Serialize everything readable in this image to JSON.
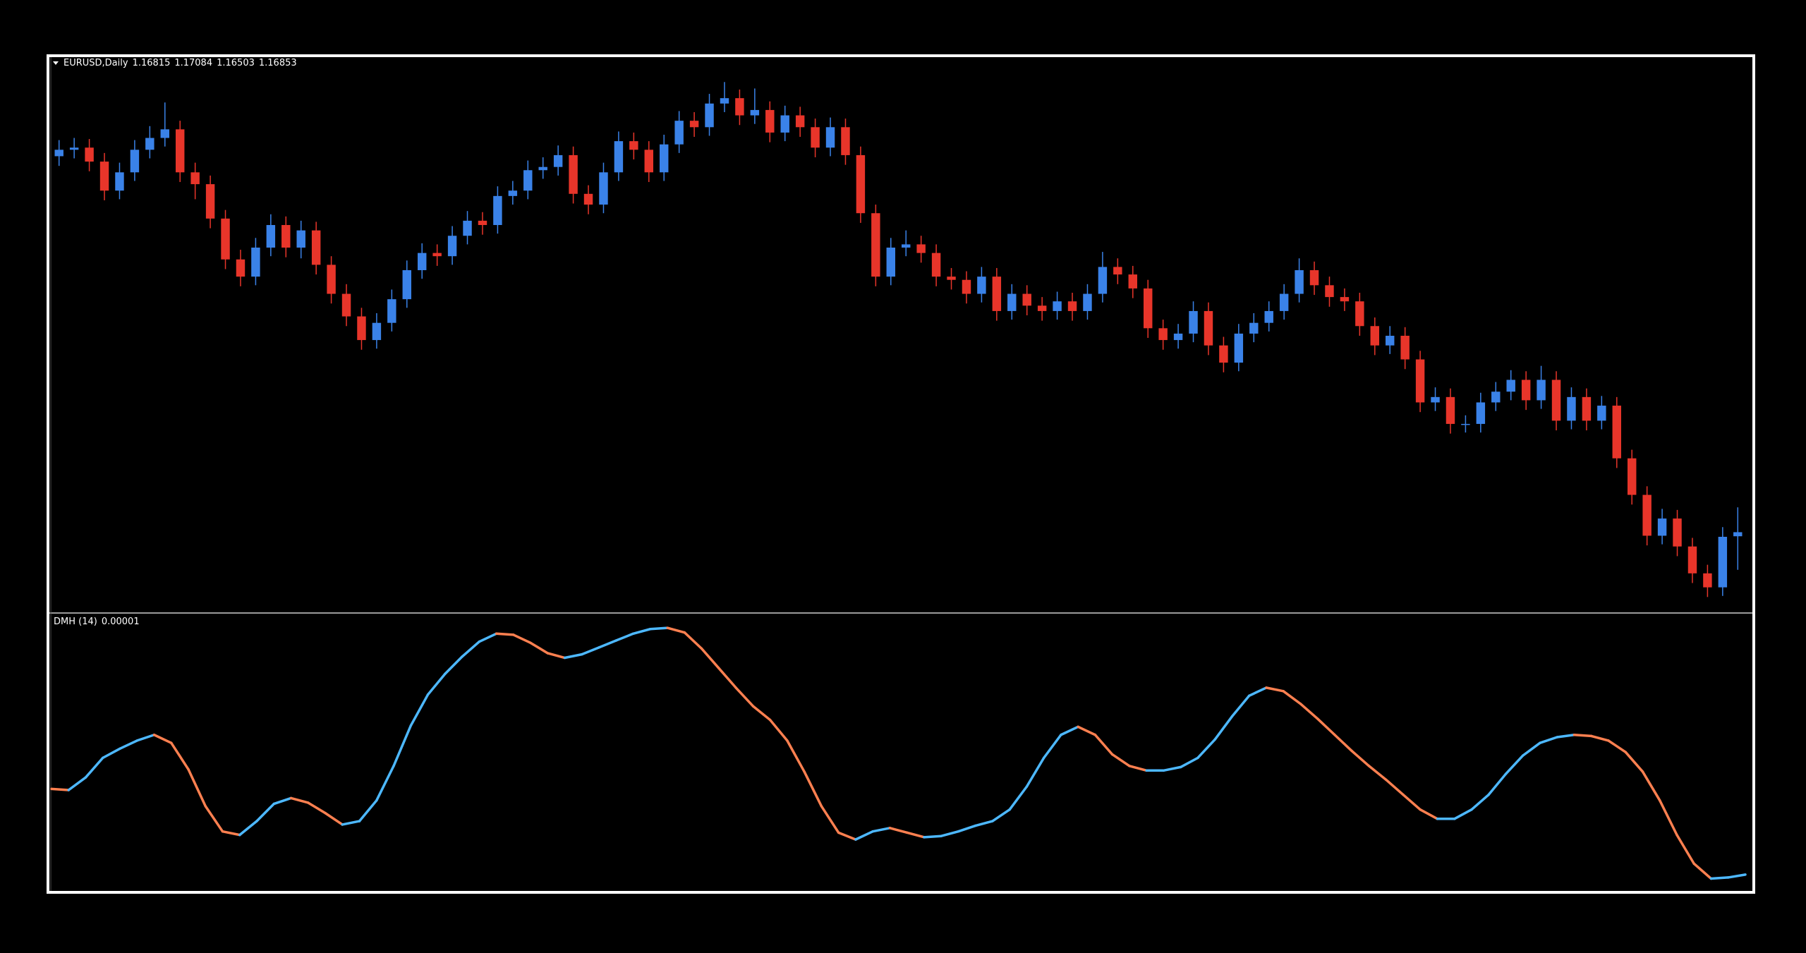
{
  "chart_data": [
    {
      "type": "candlestick",
      "title": "EURUSD,Daily",
      "up_color": "#3a82e8",
      "down_color": "#e8352a",
      "ylim": [
        1.1618,
        1.2116
      ],
      "candles": [
        [
          1.2035,
          1.205,
          1.2026,
          1.2041
        ],
        [
          1.2041,
          1.2052,
          1.2033,
          1.2043
        ],
        [
          1.2043,
          1.2051,
          1.2021,
          1.203
        ],
        [
          1.203,
          1.2038,
          1.1994,
          1.2003
        ],
        [
          1.2003,
          1.2029,
          1.1995,
          1.202
        ],
        [
          1.202,
          1.205,
          1.2012,
          1.2041
        ],
        [
          1.2041,
          1.2063,
          1.2033,
          1.2052
        ],
        [
          1.2052,
          1.2085,
          1.2044,
          1.206
        ],
        [
          1.206,
          1.2068,
          1.2011,
          1.202
        ],
        [
          1.202,
          1.2029,
          1.1995,
          1.2009
        ],
        [
          1.2009,
          1.2017,
          1.1968,
          1.1977
        ],
        [
          1.1977,
          1.1985,
          1.193,
          1.1939
        ],
        [
          1.1939,
          1.1948,
          1.1914,
          1.1923
        ],
        [
          1.1923,
          1.1959,
          1.1915,
          1.195
        ],
        [
          1.195,
          1.1981,
          1.1942,
          1.1971
        ],
        [
          1.1971,
          1.1979,
          1.1941,
          1.195
        ],
        [
          1.195,
          1.1975,
          1.194,
          1.1966
        ],
        [
          1.1966,
          1.1974,
          1.1925,
          1.1934
        ],
        [
          1.1934,
          1.1942,
          1.1898,
          1.1907
        ],
        [
          1.1907,
          1.1916,
          1.1877,
          1.1886
        ],
        [
          1.1886,
          1.1894,
          1.1855,
          1.1864
        ],
        [
          1.1864,
          1.1889,
          1.1856,
          1.188
        ],
        [
          1.188,
          1.1911,
          1.1872,
          1.1902
        ],
        [
          1.1902,
          1.1938,
          1.1894,
          1.1929
        ],
        [
          1.1929,
          1.1954,
          1.1921,
          1.1945
        ],
        [
          1.1945,
          1.1953,
          1.1933,
          1.1942
        ],
        [
          1.1942,
          1.197,
          1.1934,
          1.1961
        ],
        [
          1.1961,
          1.1984,
          1.1953,
          1.1975
        ],
        [
          1.1975,
          1.1983,
          1.1962,
          1.1971
        ],
        [
          1.1971,
          1.2007,
          1.1963,
          1.1998
        ],
        [
          1.1998,
          1.2012,
          1.199,
          1.2003
        ],
        [
          1.2003,
          1.2031,
          1.1995,
          1.2022
        ],
        [
          1.2022,
          1.2034,
          1.2014,
          1.2025
        ],
        [
          1.2025,
          1.2045,
          1.2017,
          1.2036
        ],
        [
          1.2036,
          1.2044,
          1.1991,
          1.2
        ],
        [
          1.2,
          1.2008,
          1.1981,
          1.199
        ],
        [
          1.199,
          1.2029,
          1.1982,
          1.202
        ],
        [
          1.202,
          1.2058,
          1.2012,
          1.2049
        ],
        [
          1.2049,
          1.2057,
          1.2032,
          1.2041
        ],
        [
          1.2041,
          1.2049,
          1.2011,
          1.202
        ],
        [
          1.202,
          1.2055,
          1.2012,
          1.2046
        ],
        [
          1.2046,
          1.2077,
          1.2038,
          1.2068
        ],
        [
          1.2068,
          1.2076,
          1.2053,
          1.2062
        ],
        [
          1.2062,
          1.2093,
          1.2054,
          1.2084
        ],
        [
          1.2084,
          1.2104,
          1.2076,
          1.2089
        ],
        [
          1.2089,
          1.2097,
          1.2064,
          1.2073
        ],
        [
          1.2073,
          1.2098,
          1.2065,
          1.2078
        ],
        [
          1.2078,
          1.2086,
          1.2048,
          1.2057
        ],
        [
          1.2057,
          1.2082,
          1.2049,
          1.2073
        ],
        [
          1.2073,
          1.2081,
          1.2053,
          1.2062
        ],
        [
          1.2062,
          1.207,
          1.2034,
          1.2043
        ],
        [
          1.2043,
          1.2071,
          1.2035,
          1.2062
        ],
        [
          1.2062,
          1.207,
          1.2027,
          1.2036
        ],
        [
          1.2036,
          1.2044,
          1.1973,
          1.1982
        ],
        [
          1.1982,
          1.199,
          1.1914,
          1.1923
        ],
        [
          1.1923,
          1.1959,
          1.1915,
          1.195
        ],
        [
          1.195,
          1.1966,
          1.1942,
          1.1953
        ],
        [
          1.1953,
          1.1961,
          1.1936,
          1.1945
        ],
        [
          1.1945,
          1.1953,
          1.1914,
          1.1923
        ],
        [
          1.1923,
          1.1931,
          1.1911,
          1.192
        ],
        [
          1.192,
          1.1928,
          1.1898,
          1.1907
        ],
        [
          1.1907,
          1.1932,
          1.1899,
          1.1923
        ],
        [
          1.1923,
          1.1931,
          1.1882,
          1.1891
        ],
        [
          1.1891,
          1.1916,
          1.1883,
          1.1907
        ],
        [
          1.1907,
          1.1915,
          1.1887,
          1.1896
        ],
        [
          1.1896,
          1.1904,
          1.1882,
          1.1891
        ],
        [
          1.1891,
          1.1909,
          1.1883,
          1.19
        ],
        [
          1.19,
          1.1908,
          1.1882,
          1.1891
        ],
        [
          1.1891,
          1.1916,
          1.1883,
          1.1907
        ],
        [
          1.1907,
          1.1946,
          1.1899,
          1.1932
        ],
        [
          1.1932,
          1.194,
          1.1916,
          1.1925
        ],
        [
          1.1925,
          1.1933,
          1.1903,
          1.1912
        ],
        [
          1.1912,
          1.192,
          1.1866,
          1.1875
        ],
        [
          1.1875,
          1.1883,
          1.1855,
          1.1864
        ],
        [
          1.1864,
          1.1879,
          1.1856,
          1.187
        ],
        [
          1.187,
          1.19,
          1.1862,
          1.1891
        ],
        [
          1.1891,
          1.1899,
          1.185,
          1.1859
        ],
        [
          1.1859,
          1.1867,
          1.1834,
          1.1843
        ],
        [
          1.1843,
          1.1879,
          1.1835,
          1.187
        ],
        [
          1.187,
          1.1889,
          1.1862,
          1.188
        ],
        [
          1.188,
          1.19,
          1.1872,
          1.1891
        ],
        [
          1.1891,
          1.1916,
          1.1883,
          1.1907
        ],
        [
          1.1907,
          1.194,
          1.1899,
          1.1929
        ],
        [
          1.1929,
          1.1937,
          1.1906,
          1.1915
        ],
        [
          1.1915,
          1.1923,
          1.1895,
          1.1904
        ],
        [
          1.1904,
          1.1912,
          1.1891,
          1.19
        ],
        [
          1.19,
          1.1908,
          1.1868,
          1.1877
        ],
        [
          1.1877,
          1.1885,
          1.185,
          1.1859
        ],
        [
          1.1859,
          1.1877,
          1.1851,
          1.1868
        ],
        [
          1.1868,
          1.1876,
          1.1837,
          1.1846
        ],
        [
          1.1846,
          1.1854,
          1.1797,
          1.1806
        ],
        [
          1.1806,
          1.182,
          1.1798,
          1.1811
        ],
        [
          1.1811,
          1.1819,
          1.1777,
          1.1786
        ],
        [
          1.1786,
          1.1794,
          1.1778,
          1.1786
        ],
        [
          1.1786,
          1.1815,
          1.1778,
          1.1806
        ],
        [
          1.1806,
          1.1825,
          1.1798,
          1.1816
        ],
        [
          1.1816,
          1.1836,
          1.1808,
          1.1827
        ],
        [
          1.1827,
          1.1835,
          1.1799,
          1.1808
        ],
        [
          1.1808,
          1.184,
          1.18,
          1.1827
        ],
        [
          1.1827,
          1.1835,
          1.178,
          1.1789
        ],
        [
          1.1789,
          1.182,
          1.1781,
          1.1811
        ],
        [
          1.1811,
          1.1819,
          1.178,
          1.1789
        ],
        [
          1.1789,
          1.1812,
          1.1781,
          1.1803
        ],
        [
          1.1803,
          1.1811,
          1.1745,
          1.1754
        ],
        [
          1.1754,
          1.1762,
          1.1711,
          1.172
        ],
        [
          1.172,
          1.1728,
          1.1673,
          1.1682
        ],
        [
          1.1682,
          1.1707,
          1.1674,
          1.1698
        ],
        [
          1.1698,
          1.1706,
          1.1663,
          1.1672
        ],
        [
          1.1672,
          1.168,
          1.1638,
          1.1647
        ],
        [
          1.1647,
          1.1655,
          1.1625,
          1.1634
        ],
        [
          1.1634,
          1.169,
          1.1626,
          1.1681
        ],
        [
          1.16815,
          1.17084,
          1.16503,
          1.16853
        ]
      ]
    },
    {
      "type": "line",
      "name": "DMH (14)",
      "up_color": "#4db8ff",
      "down_color": "#ff8050",
      "ylim": [
        0,
        0.00046
      ],
      "values": [
        0.000159,
        0.000157,
        0.000179,
        0.000213,
        0.000229,
        0.000243,
        0.000253,
        0.000239,
        0.000193,
        0.000129,
        8.5e-05,
        7.9e-05,
        0.000103,
        0.000133,
        0.000143,
        0.000135,
        0.000117,
        9.7e-05,
        0.000103,
        0.000139,
        0.000199,
        0.000269,
        0.000323,
        0.000359,
        0.000389,
        0.000415,
        0.000429,
        0.000427,
        0.000413,
        0.000395,
        0.000387,
        0.000393,
        0.000405,
        0.000417,
        0.000429,
        0.000437,
        0.000439,
        0.000431,
        0.000403,
        0.000369,
        0.000335,
        0.000303,
        0.000279,
        0.000243,
        0.000189,
        0.000129,
        8.3e-05,
        7.1e-05,
        8.5e-05,
        9.1e-05,
        8.3e-05,
        7.5e-05,
        7.7e-05,
        8.5e-05,
        9.5e-05,
        0.000103,
        0.000123,
        0.000163,
        0.000213,
        0.000253,
        0.000267,
        0.000253,
        0.000219,
        0.000199,
        0.000191,
        0.000191,
        0.000197,
        0.000213,
        0.000245,
        0.000285,
        0.000321,
        0.000335,
        0.000329,
        0.000307,
        0.000281,
        0.000253,
        0.000225,
        0.000199,
        0.000175,
        0.000149,
        0.000123,
        0.000107,
        0.000107,
        0.000123,
        0.000149,
        0.000185,
        0.000217,
        0.000239,
        0.000249,
        0.000253,
        0.000251,
        0.000243,
        0.000223,
        0.000189,
        0.000139,
        7.9e-05,
        2.9e-05,
        3e-06,
        5e-06,
        1e-05
      ]
    }
  ]
}
